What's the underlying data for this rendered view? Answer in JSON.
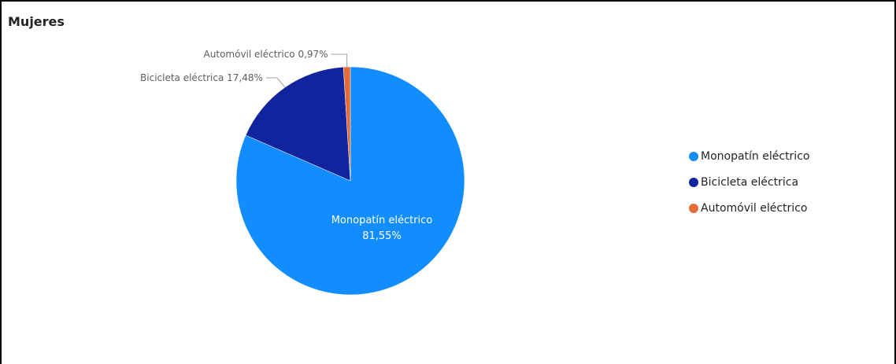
{
  "title": "Mujeres",
  "chart_data": {
    "type": "pie",
    "title": "Mujeres",
    "legend_position": "right",
    "slices": [
      {
        "label": "Monopatín eléctrico",
        "value": 81.55,
        "value_text": "81,55%",
        "color": "#118DFF",
        "label_position": "inside"
      },
      {
        "label": "Bicicleta eléctrica",
        "value": 17.48,
        "value_text": "17,48%",
        "color": "#12239E",
        "label_position": "outside"
      },
      {
        "label": "Automóvil eléctrico",
        "value": 0.97,
        "value_text": "0,97%",
        "color": "#E66C37",
        "label_position": "outside"
      }
    ]
  }
}
